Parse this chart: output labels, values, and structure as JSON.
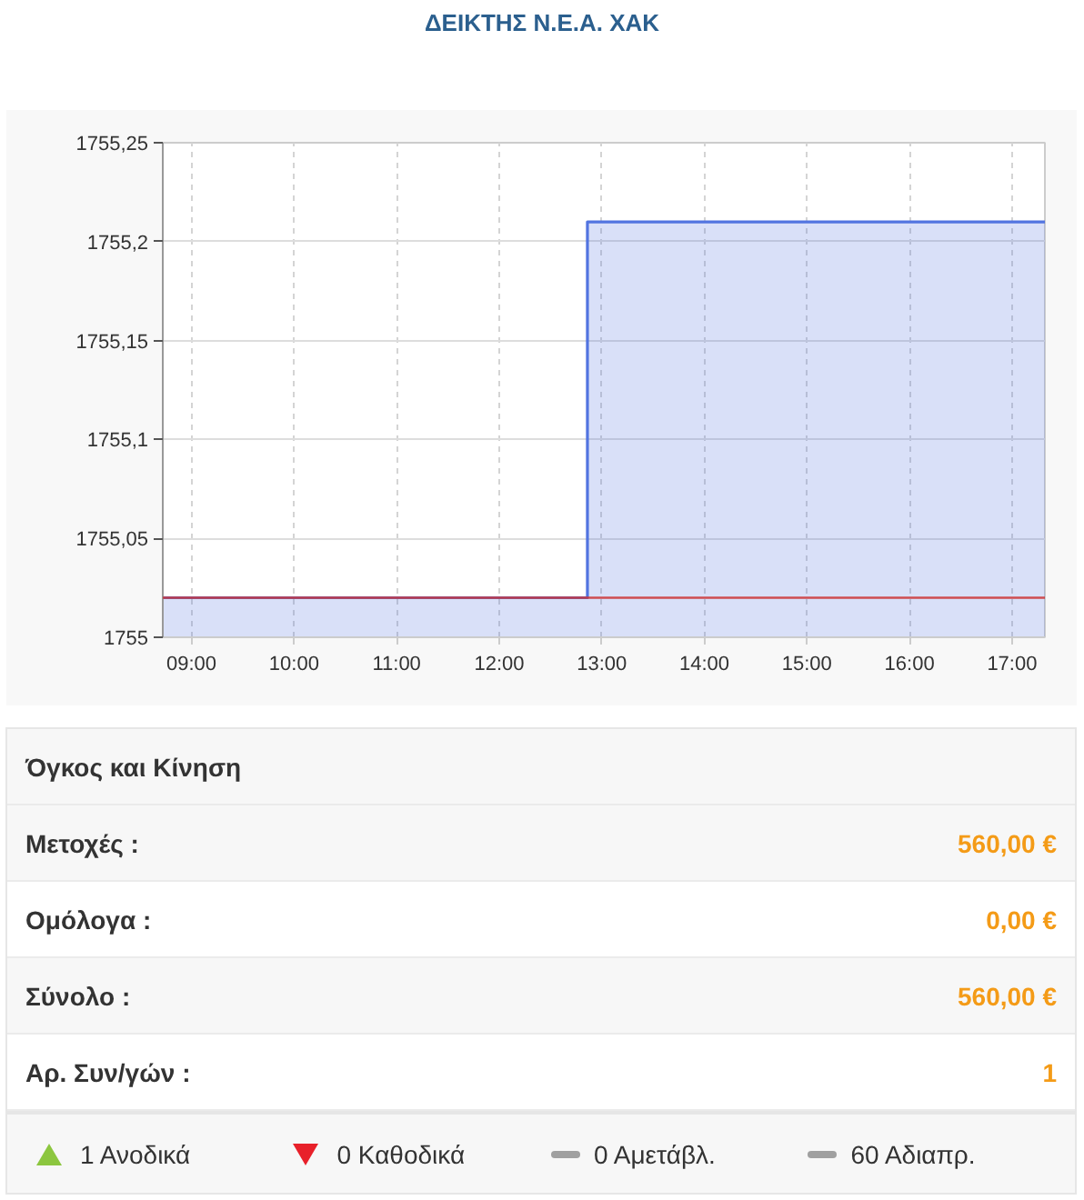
{
  "chart_data": [
    {
      "type": "area",
      "title": "ΔΕΙΚΤΗΣ Ν.Ε.Α. ΧΑΚ",
      "x": [
        8.72,
        12.86,
        12.86,
        17.32
      ],
      "series": [
        {
          "color": "#5274e0",
          "values": [
            1755.02,
            1755.02,
            1755.21,
            1755.21
          ]
        }
      ],
      "xlim": [
        8.72,
        17.32
      ],
      "xticks": [
        {
          "value": 9,
          "label": "09:00"
        },
        {
          "value": 10,
          "label": "10:00"
        },
        {
          "value": 11,
          "label": "11:00"
        },
        {
          "value": 12,
          "label": "12:00"
        },
        {
          "value": 13,
          "label": "13:00"
        },
        {
          "value": 14,
          "label": "14:00"
        },
        {
          "value": 15,
          "label": "15:00"
        },
        {
          "value": 16,
          "label": "16:00"
        },
        {
          "value": 17,
          "label": "17:00"
        }
      ],
      "ylim": [
        1755,
        1755.25
      ],
      "yticks": [
        1755,
        {
          "value": 1755.05,
          "label": "1755,05"
        },
        {
          "value": 1755.1,
          "label": "1755,1"
        },
        {
          "value": 1755.15,
          "label": "1755,15"
        },
        {
          "value": 1755.2,
          "label": "1755,2"
        },
        {
          "value": 1755.25,
          "label": "1755,25"
        }
      ],
      "grid": true,
      "ref_lines": [
        {
          "axis": "y",
          "value": 1755.02,
          "color": "#cc3333"
        }
      ]
    },
    {
      "type": "other",
      "title": "Όγκος και Κίνηση",
      "annotations": [
        "Μετοχές :",
        "560,00 €",
        "Ομόλογα :",
        "0,00 €",
        "Σύνολο :",
        "560,00 €",
        "Αρ. Συν/γών :",
        "1"
      ]
    },
    {
      "type": "other",
      "annotations": [
        "1 Ανοδικά",
        "0 Καθοδικά",
        "0 Αμετάβλ.",
        "60 Αδιαπρ."
      ]
    }
  ]
}
